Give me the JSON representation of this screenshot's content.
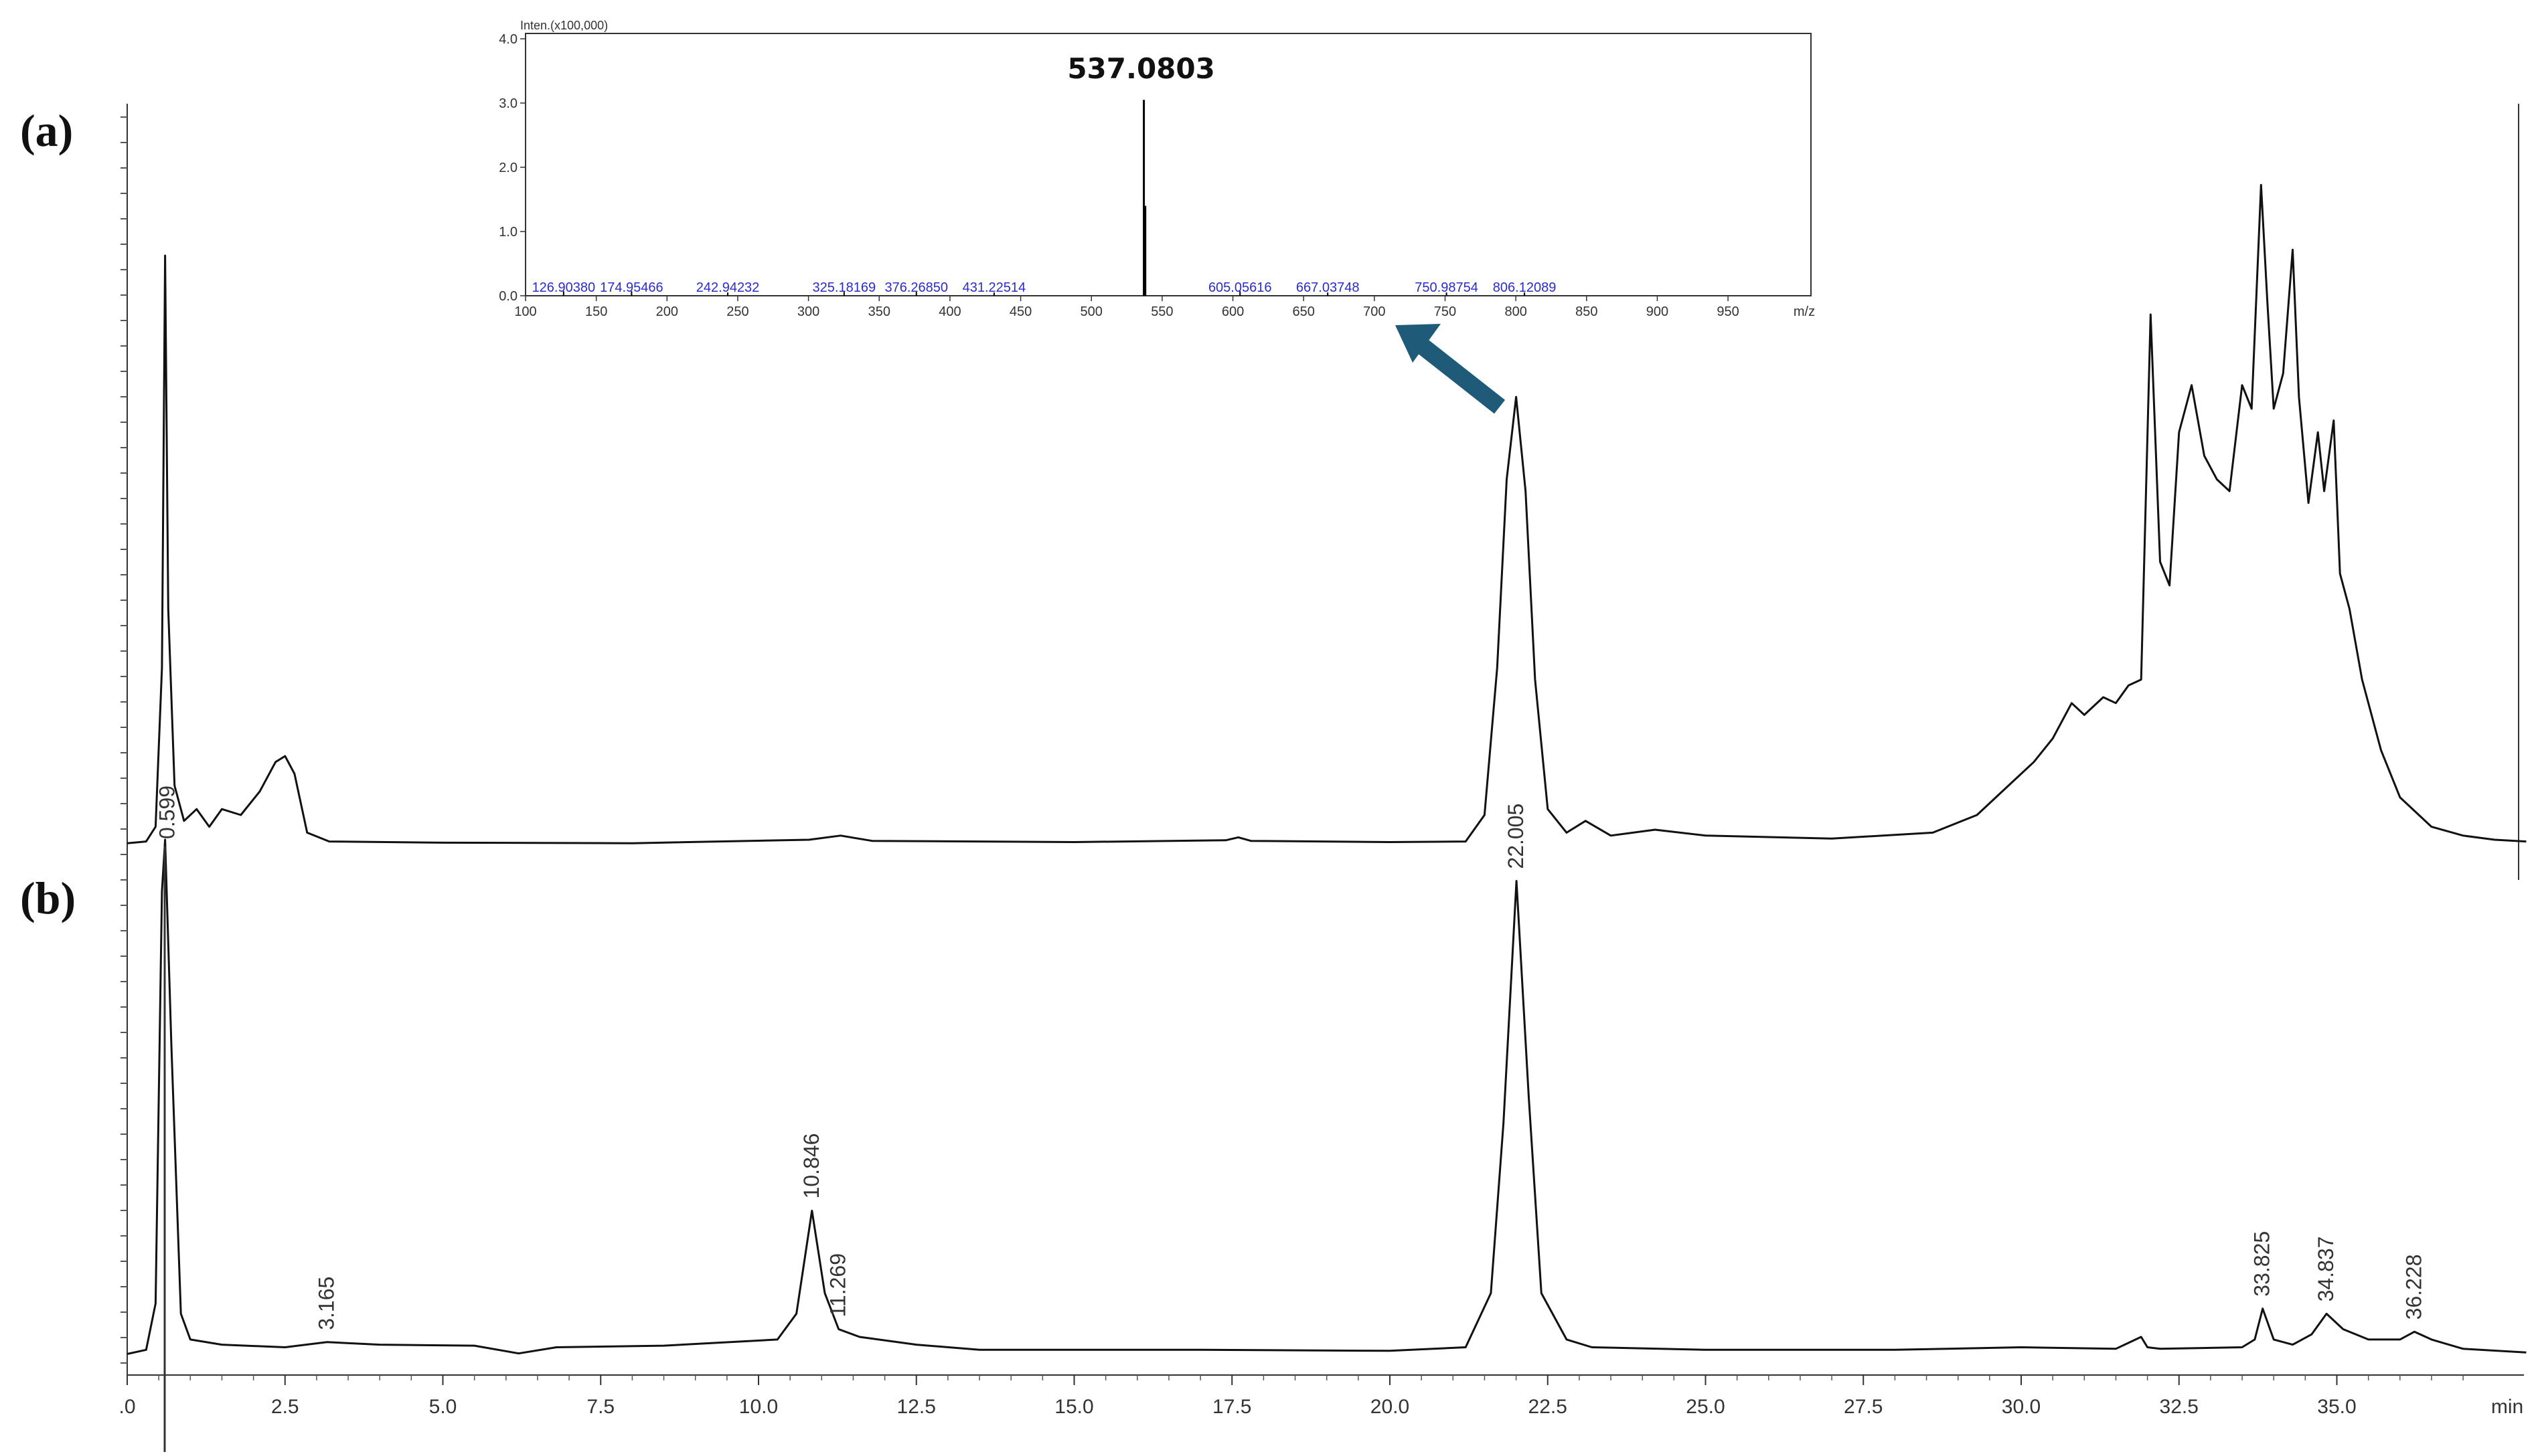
{
  "panel_labels": {
    "a": "(a)",
    "b": "(b)"
  },
  "chart_data": [
    {
      "type": "line",
      "name": "(a)",
      "xlim": [
        0,
        38
      ],
      "ylim": [
        0,
        100
      ],
      "x": [
        0.0,
        0.3,
        0.45,
        0.55,
        0.6,
        0.65,
        0.75,
        0.9,
        1.1,
        1.3,
        1.5,
        1.8,
        2.1,
        2.35,
        2.5,
        2.65,
        2.85,
        3.2,
        5,
        8,
        10.8,
        11.3,
        11.8,
        15,
        17.4,
        17.6,
        17.8,
        20,
        21.2,
        21.5,
        21.7,
        21.85,
        22.0,
        22.15,
        22.3,
        22.5,
        22.8,
        23.1,
        23.5,
        24.2,
        25,
        27,
        28.6,
        29.3,
        29.8,
        30.2,
        30.5,
        30.8,
        31.0,
        31.3,
        31.5,
        31.7,
        31.9,
        32.05,
        32.2,
        32.35,
        32.5,
        32.7,
        32.9,
        33.1,
        33.3,
        33.5,
        33.65,
        33.8,
        33.9,
        34.0,
        34.15,
        34.3,
        34.4,
        34.55,
        34.7,
        34.8,
        34.95,
        35.05,
        35.2,
        35.4,
        35.7,
        36.0,
        36.5,
        37.0,
        37.5,
        38.0
      ],
      "y": [
        0.2,
        0.5,
        3,
        30,
        100,
        40,
        10,
        4,
        6,
        3,
        6,
        5,
        9,
        14,
        15,
        12,
        2,
        0.5,
        0.3,
        0.2,
        0.8,
        1.5,
        0.6,
        0.4,
        0.7,
        1.2,
        0.6,
        0.4,
        0.5,
        5,
        30,
        62,
        76,
        60,
        28,
        6,
        2,
        4,
        1.5,
        2.5,
        1.5,
        1.0,
        2.0,
        5,
        10,
        14,
        18,
        24,
        22,
        25,
        24,
        27,
        28,
        90,
        48,
        44,
        70,
        78,
        66,
        62,
        60,
        78,
        74,
        112,
        92,
        74,
        80,
        101,
        76,
        58,
        70,
        60,
        72,
        46,
        40,
        28,
        16,
        8,
        3,
        1.5,
        0.8,
        0.5
      ]
    },
    {
      "type": "line",
      "name": "(b)",
      "xlim": [
        0,
        38
      ],
      "ylim": [
        0,
        100
      ],
      "xlabel": "min",
      "x_ticks": [
        ".0",
        "2.5",
        "5.0",
        "7.5",
        "10.0",
        "12.5",
        "15.0",
        "17.5",
        "20.0",
        "22.5",
        "25.0",
        "27.5",
        "30.0",
        "32.5",
        "35.0",
        "min"
      ],
      "x": [
        0.0,
        0.3,
        0.45,
        0.55,
        0.6,
        0.7,
        0.85,
        1.0,
        1.5,
        2.5,
        3.165,
        4.0,
        5.5,
        6.2,
        6.8,
        8.5,
        10.3,
        10.6,
        10.846,
        11.05,
        11.269,
        11.6,
        12.5,
        13.5,
        17,
        20,
        21.2,
        21.6,
        21.8,
        22.005,
        22.2,
        22.4,
        22.8,
        23.2,
        25,
        28,
        30,
        31.5,
        31.9,
        32.0,
        32.2,
        33.5,
        33.7,
        33.825,
        34.0,
        34.3,
        34.6,
        34.837,
        35.1,
        35.5,
        36.0,
        36.228,
        36.5,
        37.0,
        38.0
      ],
      "y": [
        0.2,
        1,
        10,
        90,
        100,
        60,
        8,
        3,
        2,
        1.5,
        2.5,
        2.0,
        1.8,
        0.3,
        1.5,
        1.8,
        3,
        8,
        28,
        12,
        5,
        3.5,
        2,
        1.0,
        1.0,
        0.8,
        1.5,
        12,
        45,
        92,
        50,
        12,
        3,
        1.5,
        1.0,
        1.0,
        1.5,
        1.2,
        3.5,
        1.5,
        1.2,
        1.5,
        3,
        9,
        3,
        2,
        4,
        8,
        5,
        3,
        3,
        4.5,
        3,
        1.2,
        0.5
      ],
      "peak_labels": [
        {
          "x": 0.599,
          "text": "0.599"
        },
        {
          "x": 3.165,
          "text": "3.165"
        },
        {
          "x": 10.846,
          "text": "10.846"
        },
        {
          "x": 11.269,
          "text": "11.269"
        },
        {
          "x": 22.005,
          "text": "22.005"
        },
        {
          "x": 33.825,
          "text": "33.825"
        },
        {
          "x": 34.837,
          "text": "34.837"
        },
        {
          "x": 36.228,
          "text": "36.228"
        }
      ]
    },
    {
      "type": "bar",
      "name": "inset mass spectrum",
      "xlim": [
        100,
        1000
      ],
      "ylim": [
        0,
        4.0
      ],
      "ylabel": "Inten.(x100,000)",
      "xlabel": "m/z",
      "x_ticks": [
        "100",
        "150",
        "200",
        "250",
        "300",
        "350",
        "400",
        "450",
        "500",
        "550",
        "600",
        "650",
        "700",
        "750",
        "800",
        "850",
        "900",
        "950",
        "m/z"
      ],
      "y_ticks": [
        "0.0",
        "1.0",
        "2.0",
        "3.0",
        "4.0"
      ],
      "main_peak": {
        "mz": 537.0803,
        "intensity": 3.05,
        "label": "537.0803"
      },
      "secondary_peak": {
        "mz": 538.08,
        "intensity": 1.4
      },
      "peak_labels": [
        {
          "mz": 126.9038,
          "text": "126.90380",
          "intensity": 0.05
        },
        {
          "mz": 174.95466,
          "text": "174.95466",
          "intensity": 0.05
        },
        {
          "mz": 242.94232,
          "text": "242.94232",
          "intensity": 0.03
        },
        {
          "mz": 325.18169,
          "text": "325.18169",
          "intensity": 0.04
        },
        {
          "mz": 376.2685,
          "text": "376.26850",
          "intensity": 0.04
        },
        {
          "mz": 431.22514,
          "text": "431.22514",
          "intensity": 0.03
        },
        {
          "mz": 605.05616,
          "text": "605.05616",
          "intensity": 0.05
        },
        {
          "mz": 667.03748,
          "text": "667.03748",
          "intensity": 0.03
        },
        {
          "mz": 750.98754,
          "text": "750.98754",
          "intensity": 0.03
        },
        {
          "mz": 806.12089,
          "text": "806.12089",
          "intensity": 0.03
        }
      ]
    }
  ],
  "colors": {
    "trace": "#111111",
    "ms_peak_label": "#2a2ad0",
    "arrow": "#1f5a78"
  }
}
